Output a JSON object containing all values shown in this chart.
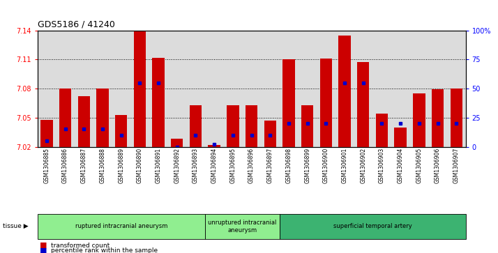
{
  "title": "GDS5186 / 41240",
  "samples": [
    "GSM1306885",
    "GSM1306886",
    "GSM1306887",
    "GSM1306888",
    "GSM1306889",
    "GSM1306890",
    "GSM1306891",
    "GSM1306892",
    "GSM1306893",
    "GSM1306894",
    "GSM1306895",
    "GSM1306896",
    "GSM1306897",
    "GSM1306898",
    "GSM1306899",
    "GSM1306900",
    "GSM1306901",
    "GSM1306902",
    "GSM1306903",
    "GSM1306904",
    "GSM1306905",
    "GSM1306906",
    "GSM1306907"
  ],
  "red_values": [
    7.048,
    7.08,
    7.072,
    7.08,
    7.053,
    7.139,
    7.112,
    7.028,
    7.063,
    7.022,
    7.063,
    7.063,
    7.047,
    7.11,
    7.063,
    7.111,
    7.135,
    7.107,
    7.054,
    7.04,
    7.075,
    7.079,
    7.08
  ],
  "blue_pct": [
    5,
    15,
    15,
    15,
    10,
    55,
    55,
    0,
    10,
    2,
    10,
    10,
    10,
    20,
    20,
    20,
    55,
    55,
    20,
    20,
    20,
    20,
    20
  ],
  "group_spans": [
    {
      "start": 0,
      "end": 9,
      "label": "ruptured intracranial aneurysm",
      "color": "#90EE90"
    },
    {
      "start": 9,
      "end": 13,
      "label": "unruptured intracranial\naneurysm",
      "color": "#90EE90"
    },
    {
      "start": 13,
      "end": 23,
      "label": "superficial temporal artery",
      "color": "#3CB371"
    }
  ],
  "ylim_left": [
    7.02,
    7.14
  ],
  "ylim_right": [
    0,
    100
  ],
  "yticks_left": [
    7.02,
    7.05,
    7.08,
    7.11,
    7.14
  ],
  "yticks_right": [
    0,
    25,
    50,
    75,
    100
  ],
  "ytick_right_labels": [
    "0",
    "25",
    "50",
    "75",
    "100%"
  ],
  "bar_color": "#CC0000",
  "dot_color": "#0000CC",
  "plot_bg": "#DCDCDC",
  "fig_bg": "#FFFFFF",
  "grid_yticks": [
    7.05,
    7.08,
    7.11
  ]
}
